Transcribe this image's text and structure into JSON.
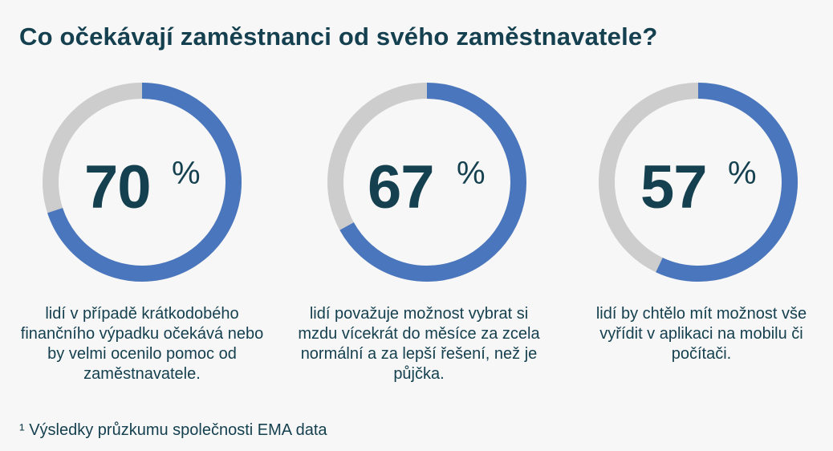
{
  "title": "Co očekávají zaměstnanci od svého zaměstnavatele?",
  "chart_data": {
    "type": "pie",
    "items": [
      {
        "value": 70,
        "number": "70",
        "unit": "%",
        "description": "lidí v případě krátkodobého finančního výpadku očekává nebo by velmi ocenilo pomoc od zaměstnavatele."
      },
      {
        "value": 67,
        "number": "67",
        "unit": "%",
        "description": "lidí považuje možnost vybrat si mzdu vícekrát do měsíce za zcela normální a za lepší řešení, než je půjčka."
      },
      {
        "value": 57,
        "number": "57",
        "unit": "%",
        "description": "lidí by chtělo mít možnost vše vyřídit v aplikaci na mobilu či počítači."
      }
    ]
  },
  "colors": {
    "value_arc": "#4a76bd",
    "track": "#cdcdcd",
    "text": "#15404f",
    "background": "#f7f7f7"
  },
  "footnote": "¹ Výsledky průzkumu společnosti EMA data"
}
